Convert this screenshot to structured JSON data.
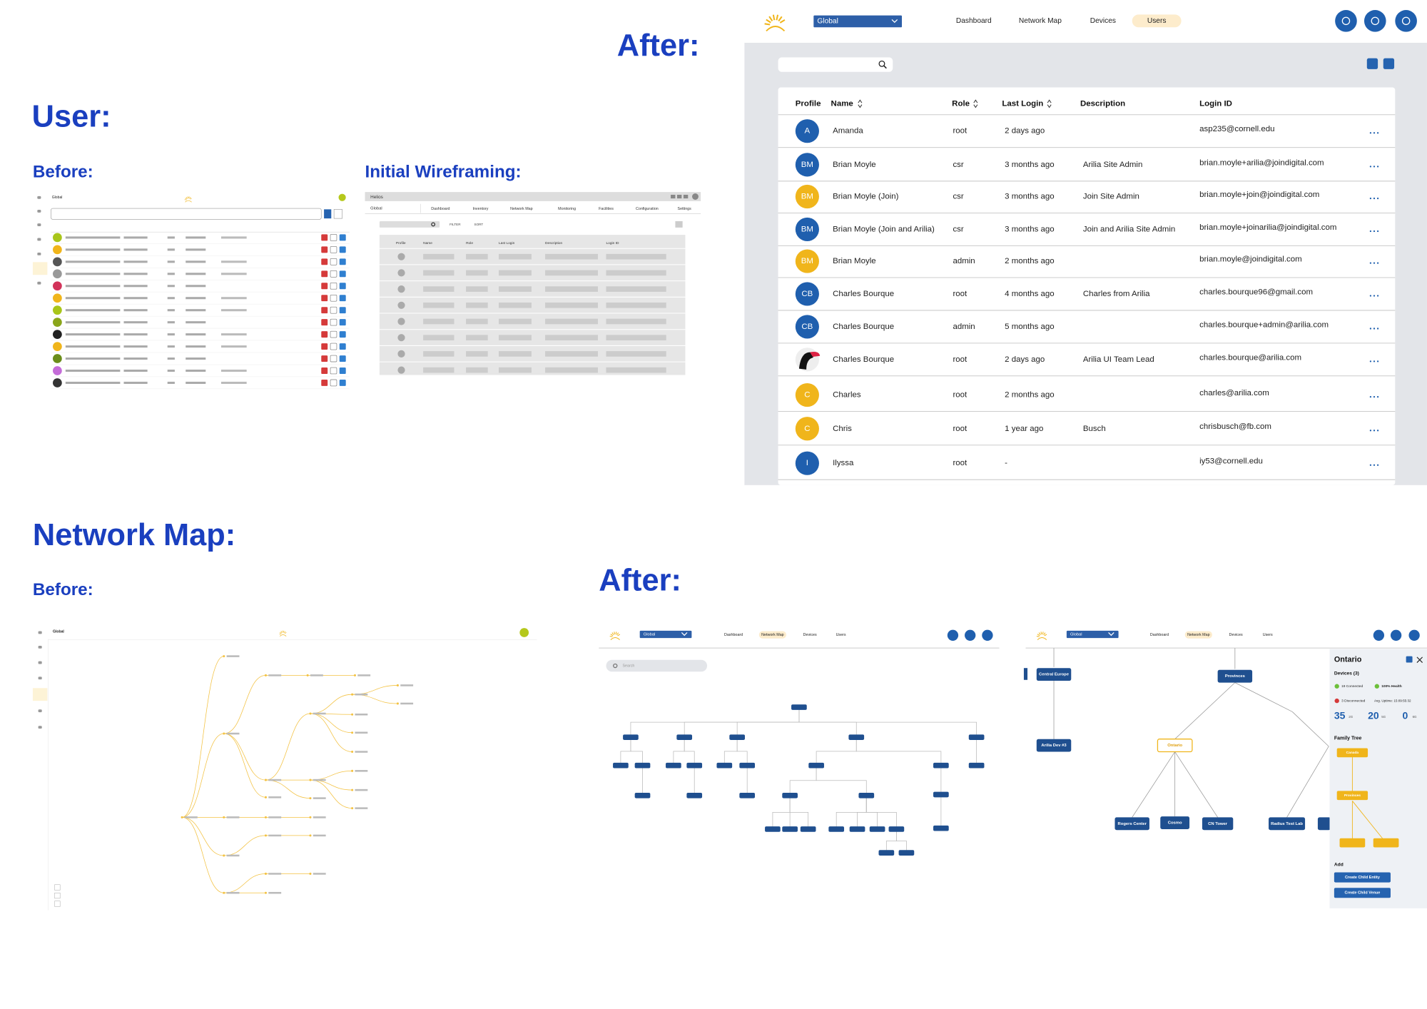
{
  "headings": {
    "after_user": "After:",
    "user": "User:",
    "before_user": "Before:",
    "wireframing": "Initial Wireframing:",
    "network_map": "Network Map:",
    "before_map": "Before:",
    "after_map": "After:"
  },
  "app": {
    "scope": "Global",
    "nav": [
      "Dashboard",
      "Network Map",
      "Devices",
      "Users"
    ]
  },
  "users_table": {
    "columns": [
      "Profile",
      "Name",
      "Role",
      "Last Login",
      "Description",
      "Login ID"
    ],
    "rows": [
      {
        "initials": "A",
        "color": "#1f5fae",
        "name": "Amanda",
        "role": "root",
        "last_login": "2 days ago",
        "login_id": "asp235@cornell.edu"
      },
      {
        "initials": "BM",
        "color": "#1f5fae",
        "name": "Brian Moyle",
        "role": "csr",
        "last_login": "3 months ago",
        "description": "Arilia Site Admin",
        "login_id": "brian.moyle+arilia@joindigital.com"
      },
      {
        "initials": "BM",
        "color": "#f0b51b",
        "name": "Brian Moyle (Join)",
        "role": "csr",
        "last_login": "3 months ago",
        "description": "Join Site Admin",
        "login_id": "brian.moyle+join@joindigital.com"
      },
      {
        "initials": "BM",
        "color": "#1f5fae",
        "name": "Brian Moyle (Join and Arilia)",
        "role": "csr",
        "last_login": "3 months ago",
        "description": "Join and Arilia Site Admin",
        "login_id": "brian.moyle+joinarilia@joindigital.com"
      },
      {
        "initials": "BM",
        "color": "#f0b51b",
        "name": "Brian Moyle",
        "role": "admin",
        "last_login": "2 months ago",
        "login_id": "brian.moyle@joindigital.com"
      },
      {
        "initials": "CB",
        "color": "#1f5fae",
        "name": "Charles Bourque",
        "role": "root",
        "last_login": "4 months ago",
        "description": "Charles from Arilia",
        "login_id": "charles.bourque96@gmail.com"
      },
      {
        "initials": "CB",
        "color": "#1f5fae",
        "name": "Charles Bourque",
        "role": "admin",
        "last_login": "5 months ago",
        "login_id": "charles.bourque+admin@arilia.com"
      },
      {
        "name": "Charles Bourque",
        "role": "root",
        "last_login": "2 days ago",
        "description": "Arilia UI Team Lead",
        "login_id": "charles.bourque@arilia.com"
      },
      {
        "initials": "C",
        "color": "#f0b51b",
        "name": "Charles",
        "role": "root",
        "last_login": "2 months ago",
        "login_id": "charles@arilia.com"
      },
      {
        "initials": "C",
        "color": "#f0b51b",
        "name": "Chris",
        "role": "root",
        "last_login": "1 year ago",
        "description": "Busch",
        "login_id": "chrisbusch@fb.com"
      },
      {
        "initials": "I",
        "color": "#1f5fae",
        "name": "Ilyssa",
        "role": "root",
        "last_login": "-",
        "login_id": "iy53@cornell.edu"
      }
    ]
  },
  "wireframe": {
    "app_name": "Helios",
    "scope": "Global",
    "nav": [
      "Dashboard",
      "Inventory",
      "Network Map",
      "Monitoring",
      "Facilities",
      "Configuration",
      "Settings"
    ],
    "filter": "FILTER",
    "sort": "SORT",
    "columns": [
      "Profile",
      "Name",
      "Role",
      "Last Login",
      "Description",
      "Login ID"
    ]
  },
  "network_after": {
    "search": "Search",
    "nodes": [
      "Central Europe",
      "Provinces",
      "Arilia Dev #3",
      "Ontario",
      "Rogers Center",
      "Cosmo",
      "CN Tower",
      "Radius Test Lab"
    ],
    "panel": {
      "title": "Ontario",
      "devices": "Devices (3)",
      "connected": "19 Connected",
      "health": "100% Health",
      "disconnected": "3 Disconnected",
      "uptime": "Avg. Uptime: 15:09:55:32",
      "counts": [
        {
          "value": "35",
          "unit": "2G"
        },
        {
          "value": "20",
          "unit": "5G"
        },
        {
          "value": "0",
          "unit": "6G"
        }
      ],
      "family_tree": "Family Tree",
      "tree_nodes": [
        "Canada",
        "Provinces"
      ],
      "add": "Add",
      "buttons": [
        "Create Child Entity",
        "Create Child Venue"
      ]
    }
  }
}
